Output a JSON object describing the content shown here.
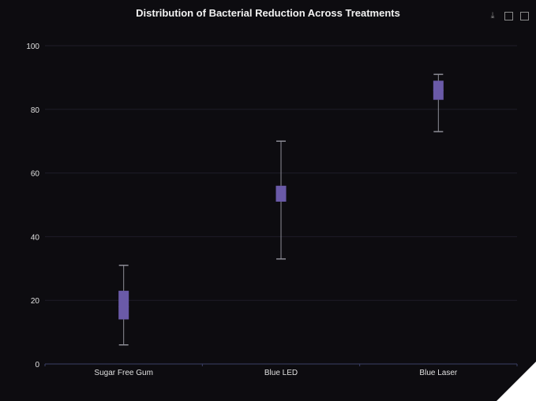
{
  "toolbar": {
    "icons": [
      "download-icon",
      "zoom-select-icon",
      "zoom-reset-icon"
    ]
  },
  "colors": {
    "background": "#0d0c10",
    "box_fill": "#6a5aa8",
    "whisker": "#8d8d96",
    "grid": "#1e1c28",
    "axis": "#3b3f66"
  },
  "chart_data": {
    "type": "box",
    "title": "Distribution of Bacterial Reduction Across Treatments",
    "xlabel": "",
    "ylabel": "",
    "categories": [
      "Sugar Free Gum",
      "Blue LED",
      "Blue Laser"
    ],
    "boxes": [
      {
        "min": 6,
        "q1": 14,
        "median": 18,
        "q3": 23,
        "max": 31
      },
      {
        "min": 33,
        "q1": 51,
        "median": 54,
        "q3": 56,
        "max": 70
      },
      {
        "min": 73,
        "q1": 83,
        "median": 86,
        "q3": 89,
        "max": 91
      }
    ],
    "ylim": [
      0,
      100
    ],
    "yticks": [
      "0",
      "20",
      "40",
      "60",
      "80",
      "100"
    ],
    "grid": true,
    "legend": "none"
  }
}
